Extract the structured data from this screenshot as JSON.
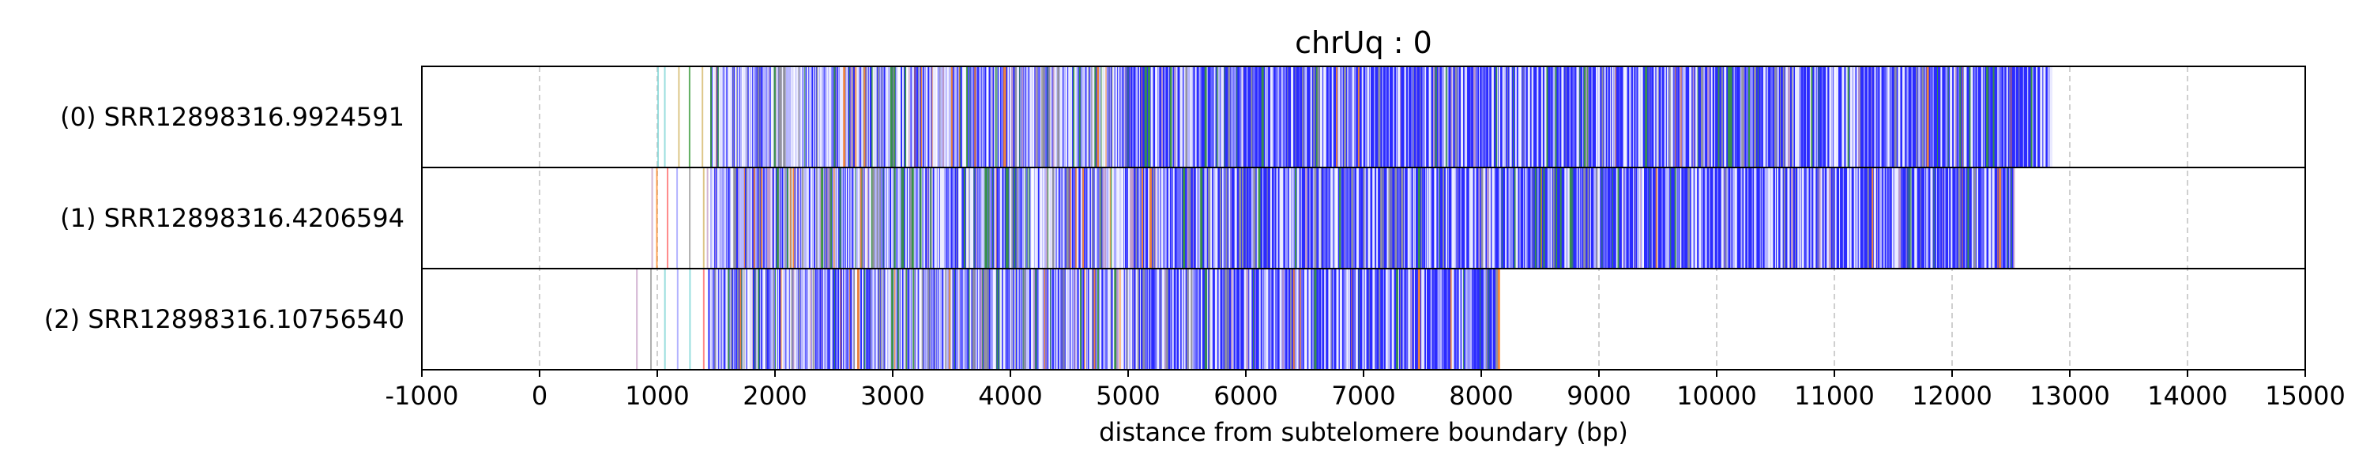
{
  "chart_data": {
    "type": "heatmap",
    "title": "chrUq : 0",
    "xlabel": "distance from subtelomere boundary (bp)",
    "xlim": [
      -1000,
      15000
    ],
    "xticks": [
      -1000,
      0,
      1000,
      2000,
      3000,
      4000,
      5000,
      6000,
      7000,
      8000,
      9000,
      10000,
      11000,
      12000,
      13000,
      14000,
      15000
    ],
    "grid": "x, dashed",
    "colors": {
      "dominant": "#2b2bff",
      "accents": [
        "#9a9a9a",
        "#3a9a3a",
        "#ff8c2a",
        "#c8a2c8",
        "#ff6b6b",
        "#7fd6d6",
        "#d4b86a",
        "#a0a0ff",
        "#80c080"
      ]
    },
    "rows": [
      {
        "label": "(0) SRR12898316.9924591",
        "start": 1000,
        "dense_start": 1450,
        "end": 12850
      },
      {
        "label": "(1) SRR12898316.4206594",
        "start": 950,
        "dense_start": 1450,
        "end": 12520
      },
      {
        "label": "(2) SRR12898316.10756540",
        "start": 820,
        "dense_start": 1430,
        "end": 8150
      }
    ]
  }
}
